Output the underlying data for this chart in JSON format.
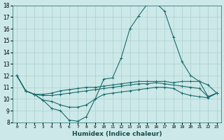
{
  "xlabel": "Humidex (Indice chaleur)",
  "xlim": [
    -0.5,
    23.5
  ],
  "ylim": [
    8,
    18
  ],
  "yticks": [
    8,
    9,
    10,
    11,
    12,
    13,
    14,
    15,
    16,
    17,
    18
  ],
  "xticks": [
    0,
    1,
    2,
    3,
    4,
    5,
    6,
    7,
    8,
    9,
    10,
    11,
    12,
    13,
    14,
    15,
    16,
    17,
    18,
    19,
    20,
    21,
    22,
    23
  ],
  "bg_color": "#cce8e8",
  "line_color": "#1a6b6b",
  "grid_color": "#aacfcf",
  "lines": [
    [
      12.0,
      10.7,
      10.4,
      9.9,
      9.2,
      9.0,
      8.2,
      8.1,
      8.5,
      10.0,
      11.7,
      11.8,
      13.5,
      16.0,
      17.1,
      18.1,
      18.2,
      17.5,
      15.3,
      13.2,
      12.0,
      11.5,
      11.2,
      10.5
    ],
    [
      12.0,
      10.7,
      10.4,
      9.9,
      9.8,
      9.5,
      9.3,
      9.3,
      9.5,
      10.0,
      10.4,
      10.5,
      10.6,
      10.7,
      10.8,
      10.9,
      11.0,
      11.0,
      10.9,
      10.5,
      10.3,
      10.2,
      10.1,
      10.5
    ],
    [
      12.0,
      10.7,
      10.4,
      10.3,
      10.3,
      10.4,
      10.5,
      10.6,
      10.7,
      10.8,
      10.9,
      11.0,
      11.1,
      11.2,
      11.3,
      11.3,
      11.4,
      11.3,
      11.2,
      11.1,
      11.0,
      10.9,
      10.2,
      10.5
    ],
    [
      12.0,
      10.7,
      10.4,
      10.4,
      10.5,
      10.7,
      10.8,
      10.9,
      11.0,
      11.0,
      11.1,
      11.2,
      11.3,
      11.4,
      11.5,
      11.5,
      11.5,
      11.5,
      11.4,
      11.5,
      11.5,
      11.5,
      10.2,
      10.5
    ]
  ]
}
